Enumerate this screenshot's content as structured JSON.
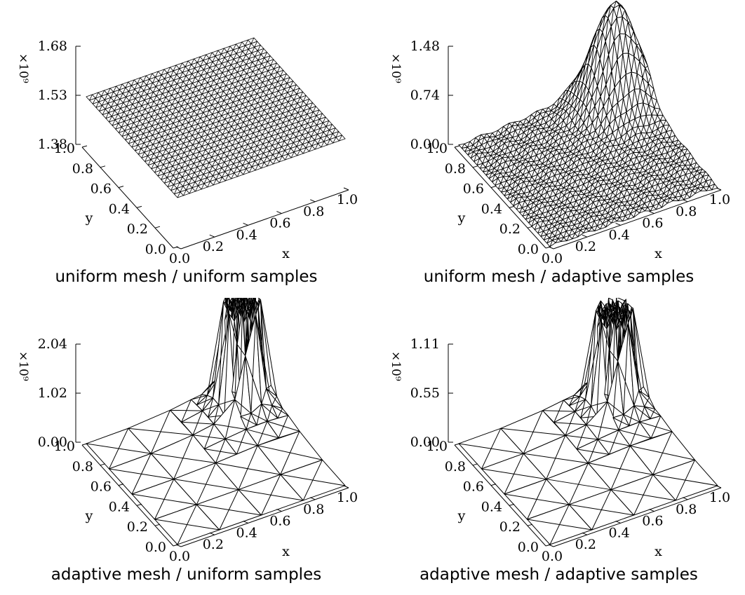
{
  "chart_data": [
    {
      "type": "surface-3d",
      "title": "uniform mesh / uniform samples",
      "mesh": "uniform",
      "surface_shape": "flat",
      "xlabel": "x",
      "ylabel": "y",
      "x_ticks": [
        "0.0",
        "0.2",
        "0.4",
        "0.6",
        "0.8",
        "1.0"
      ],
      "y_ticks": [
        "0.0",
        "0.2",
        "0.4",
        "0.6",
        "0.8",
        "1.0"
      ],
      "z_ticks": [
        "1.38",
        "1.53",
        "1.68"
      ],
      "z_multiplier": "×10⁹",
      "xlim": [
        0,
        1
      ],
      "ylim": [
        0,
        1
      ],
      "zlim": [
        1.38,
        1.68
      ],
      "surface_value": 1.53
    },
    {
      "type": "surface-3d",
      "title": "uniform mesh / adaptive samples",
      "mesh": "uniform",
      "surface_shape": "peak",
      "xlabel": "x",
      "ylabel": "y",
      "x_ticks": [
        "0.0",
        "0.2",
        "0.4",
        "0.6",
        "0.8",
        "1.0"
      ],
      "y_ticks": [
        "0.0",
        "0.2",
        "0.4",
        "0.6",
        "0.8",
        "1.0"
      ],
      "z_ticks": [
        "0.00",
        "0.74",
        "1.48"
      ],
      "z_multiplier": "×10⁹",
      "xlim": [
        0,
        1
      ],
      "ylim": [
        0,
        1
      ],
      "zlim": [
        0,
        1.48
      ],
      "peak": {
        "x": 0.85,
        "y": 0.85,
        "z": 1.48
      }
    },
    {
      "type": "surface-3d",
      "title": "adaptive mesh / uniform samples",
      "mesh": "adaptive",
      "surface_shape": "spiky",
      "xlabel": "x",
      "ylabel": "y",
      "x_ticks": [
        "0.0",
        "0.2",
        "0.4",
        "0.6",
        "0.8",
        "1.0"
      ],
      "y_ticks": [
        "0.0",
        "0.2",
        "0.4",
        "0.6",
        "0.8",
        "1.0"
      ],
      "z_ticks": [
        "0.00",
        "1.02",
        "2.04"
      ],
      "z_multiplier": "×10⁹",
      "xlim": [
        0,
        1
      ],
      "ylim": [
        0,
        1
      ],
      "zlim": [
        0,
        2.04
      ],
      "peak": {
        "x": 0.85,
        "y": 0.85,
        "z": 2.3
      }
    },
    {
      "type": "surface-3d",
      "title": "adaptive mesh / adaptive samples",
      "mesh": "adaptive",
      "surface_shape": "spiky",
      "xlabel": "x",
      "ylabel": "y",
      "x_ticks": [
        "0.0",
        "0.2",
        "0.4",
        "0.6",
        "0.8",
        "1.0"
      ],
      "y_ticks": [
        "0.0",
        "0.2",
        "0.4",
        "0.6",
        "0.8",
        "1.0"
      ],
      "z_ticks": [
        "0.00",
        "0.55",
        "1.11"
      ],
      "z_multiplier": "×10⁹",
      "xlim": [
        0,
        1
      ],
      "ylim": [
        0,
        1
      ],
      "zlim": [
        0,
        1.11
      ],
      "peak": {
        "x": 0.85,
        "y": 0.85,
        "z": 1.15
      }
    }
  ]
}
